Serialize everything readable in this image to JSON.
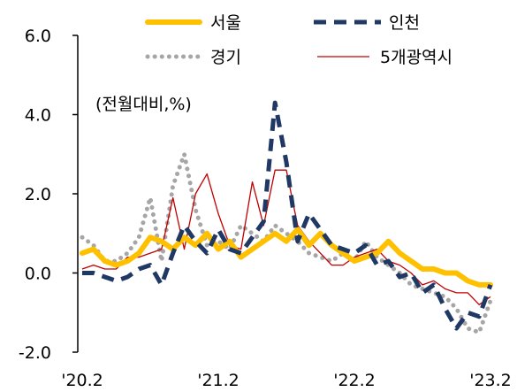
{
  "chart_data": {
    "type": "line",
    "unit_note": "(전월대비,%)",
    "ylim": [
      -2.0,
      6.0
    ],
    "y_ticks": [
      "6.0",
      "4.0",
      "2.0",
      "0.0",
      "-2.0"
    ],
    "y_tick_values": [
      6,
      4,
      2,
      0,
      -2
    ],
    "x_tick_labels": [
      "'20.2",
      "'21.2",
      "'22.2",
      "'23.2"
    ],
    "x_tick_positions": [
      "2020-02",
      "2021-02",
      "2022-02",
      "2023-02"
    ],
    "x": [
      "2020-02",
      "2020-03",
      "2020-04",
      "2020-05",
      "2020-06",
      "2020-07",
      "2020-08",
      "2020-09",
      "2020-10",
      "2020-11",
      "2020-12",
      "2021-01",
      "2021-02",
      "2021-03",
      "2021-04",
      "2021-05",
      "2021-06",
      "2021-07",
      "2021-08",
      "2021-09",
      "2021-10",
      "2021-11",
      "2021-12",
      "2022-01",
      "2022-02",
      "2022-03",
      "2022-04",
      "2022-05",
      "2022-06",
      "2022-07",
      "2022-08",
      "2022-09",
      "2022-10",
      "2022-11",
      "2022-12",
      "2023-01",
      "2023-02"
    ],
    "legend_position": "top",
    "grid": false,
    "series": [
      {
        "name": "서울",
        "color": "#FFC000",
        "style": "solid-thick",
        "values": [
          0.5,
          0.6,
          0.3,
          0.2,
          0.3,
          0.5,
          0.9,
          0.8,
          0.6,
          0.9,
          0.7,
          1.0,
          0.6,
          0.8,
          0.4,
          0.6,
          0.8,
          1.0,
          0.8,
          1.1,
          0.7,
          1.0,
          0.7,
          0.5,
          0.3,
          0.4,
          0.5,
          0.8,
          0.5,
          0.3,
          0.1,
          0.1,
          0.0,
          0.0,
          -0.2,
          -0.3,
          -0.3
        ]
      },
      {
        "name": "인천",
        "color": "#203864",
        "style": "dashed-thick",
        "values": [
          0.0,
          0.0,
          -0.1,
          -0.2,
          -0.1,
          0.1,
          0.2,
          -0.3,
          0.5,
          1.2,
          0.8,
          0.5,
          1.1,
          0.6,
          0.5,
          0.9,
          1.3,
          4.3,
          2.8,
          0.8,
          1.5,
          1.1,
          0.7,
          0.6,
          0.5,
          0.7,
          0.2,
          0.3,
          -0.1,
          0.0,
          -0.5,
          -0.3,
          -0.9,
          -1.4,
          -1.0,
          -1.1,
          -0.3
        ]
      },
      {
        "name": "경기",
        "color": "#A6A6A6",
        "style": "dotted",
        "values": [
          0.9,
          0.7,
          0.3,
          0.3,
          0.5,
          0.9,
          1.9,
          0.3,
          2.2,
          3.0,
          1.6,
          0.7,
          0.8,
          0.6,
          1.2,
          1.0,
          0.8,
          1.2,
          1.0,
          0.8,
          0.5,
          0.4,
          0.3,
          0.5,
          0.3,
          0.8,
          0.4,
          0.2,
          0.0,
          -0.3,
          -0.4,
          -0.5,
          -0.6,
          -0.9,
          -1.4,
          -1.5,
          -0.7
        ]
      },
      {
        "name": "5개광역시",
        "color": "#C00000",
        "style": "thin",
        "values": [
          0.1,
          0.2,
          0.1,
          0.1,
          0.4,
          0.4,
          0.5,
          0.6,
          1.9,
          0.6,
          2.0,
          2.5,
          1.5,
          0.7,
          0.6,
          2.3,
          1.2,
          2.6,
          2.6,
          1.2,
          0.8,
          0.5,
          0.2,
          0.2,
          0.4,
          0.5,
          0.6,
          0.3,
          0.2,
          0.0,
          -0.3,
          -0.2,
          -0.4,
          -0.5,
          -0.5,
          -0.8,
          -0.6
        ]
      }
    ]
  }
}
